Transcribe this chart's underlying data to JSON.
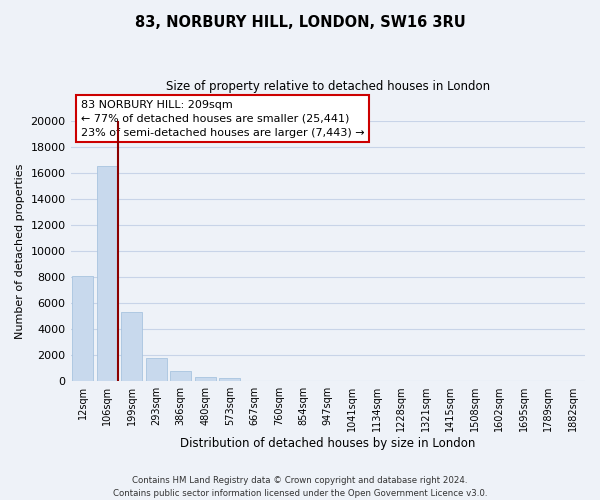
{
  "title": "83, NORBURY HILL, LONDON, SW16 3RU",
  "subtitle": "Size of property relative to detached houses in London",
  "xlabel": "Distribution of detached houses by size in London",
  "ylabel": "Number of detached properties",
  "bar_labels": [
    "12sqm",
    "106sqm",
    "199sqm",
    "293sqm",
    "386sqm",
    "480sqm",
    "573sqm",
    "667sqm",
    "760sqm",
    "854sqm",
    "947sqm",
    "1041sqm",
    "1134sqm",
    "1228sqm",
    "1321sqm",
    "1415sqm",
    "1508sqm",
    "1602sqm",
    "1695sqm",
    "1789sqm",
    "1882sqm"
  ],
  "bar_values": [
    8100,
    16500,
    5300,
    1800,
    800,
    300,
    200,
    0,
    0,
    0,
    0,
    0,
    0,
    0,
    0,
    0,
    0,
    0,
    0,
    0,
    0
  ],
  "bar_color": "#c8d9ed",
  "bar_edge_color": "#a8c4df",
  "property_line_color": "#8b0000",
  "ylim": [
    0,
    20000
  ],
  "yticks": [
    0,
    2000,
    4000,
    6000,
    8000,
    10000,
    12000,
    14000,
    16000,
    18000,
    20000
  ],
  "annotation_title": "83 NORBURY HILL: 209sqm",
  "annotation_line1": "← 77% of detached houses are smaller (25,441)",
  "annotation_line2": "23% of semi-detached houses are larger (7,443) →",
  "annotation_box_color": "white",
  "annotation_box_edge_color": "#cc0000",
  "footer_line1": "Contains HM Land Registry data © Crown copyright and database right 2024.",
  "footer_line2": "Contains public sector information licensed under the Open Government Licence v3.0.",
  "background_color": "#eef2f8",
  "grid_color": "#c8d4e8"
}
